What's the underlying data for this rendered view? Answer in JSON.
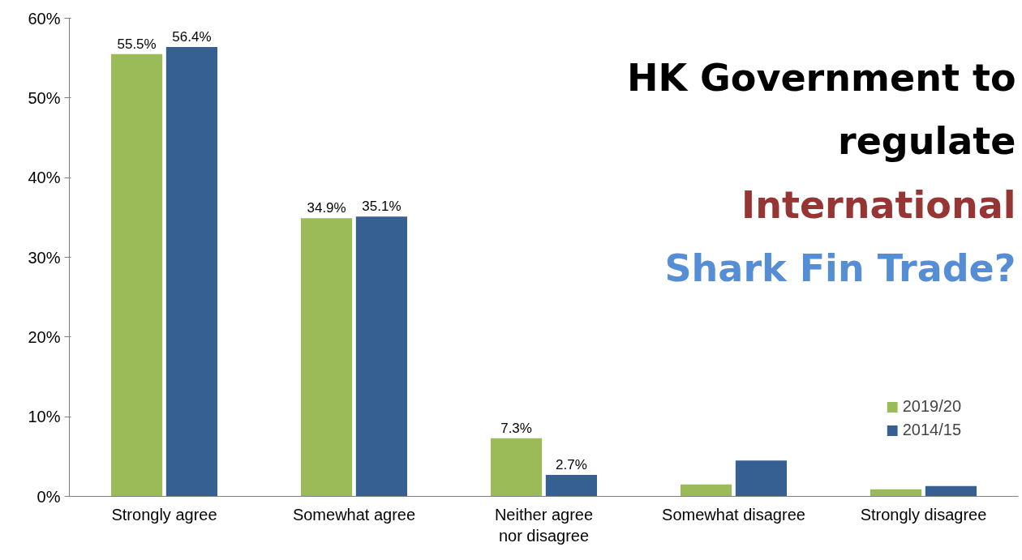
{
  "chart_data": {
    "type": "bar",
    "title": "HK Government to\nregulate",
    "subtitle": "International\nShark Fin Trade?",
    "categories": [
      "Strongly agree",
      "Somewhat agree",
      "Neither agree nor disagree",
      "Somewhat disagree",
      "Strongly disagree"
    ],
    "series": [
      {
        "name": "2019/20",
        "color": "#9bbb59",
        "values": [
          55.5,
          34.9,
          7.3,
          1.5,
          0.9
        ],
        "value_labels": [
          "55.5%",
          "34.9%",
          "7.3%",
          null,
          null
        ]
      },
      {
        "name": "2014/15",
        "color": "#366092",
        "values": [
          56.4,
          35.1,
          2.7,
          4.5,
          1.3
        ],
        "value_labels": [
          "56.4%",
          "35.1%",
          "2.7%",
          null,
          null
        ]
      }
    ],
    "ylim": [
      0,
      60
    ],
    "yticks": [
      {
        "value": 0,
        "label": "0%"
      },
      {
        "value": 10,
        "label": "10%"
      },
      {
        "value": 20,
        "label": "20%"
      },
      {
        "value": 30,
        "label": "30%"
      },
      {
        "value": 40,
        "label": "40%"
      },
      {
        "value": 50,
        "label": "50%"
      },
      {
        "value": 60,
        "label": "60%"
      }
    ],
    "grid": false,
    "legend": "bottom right"
  }
}
